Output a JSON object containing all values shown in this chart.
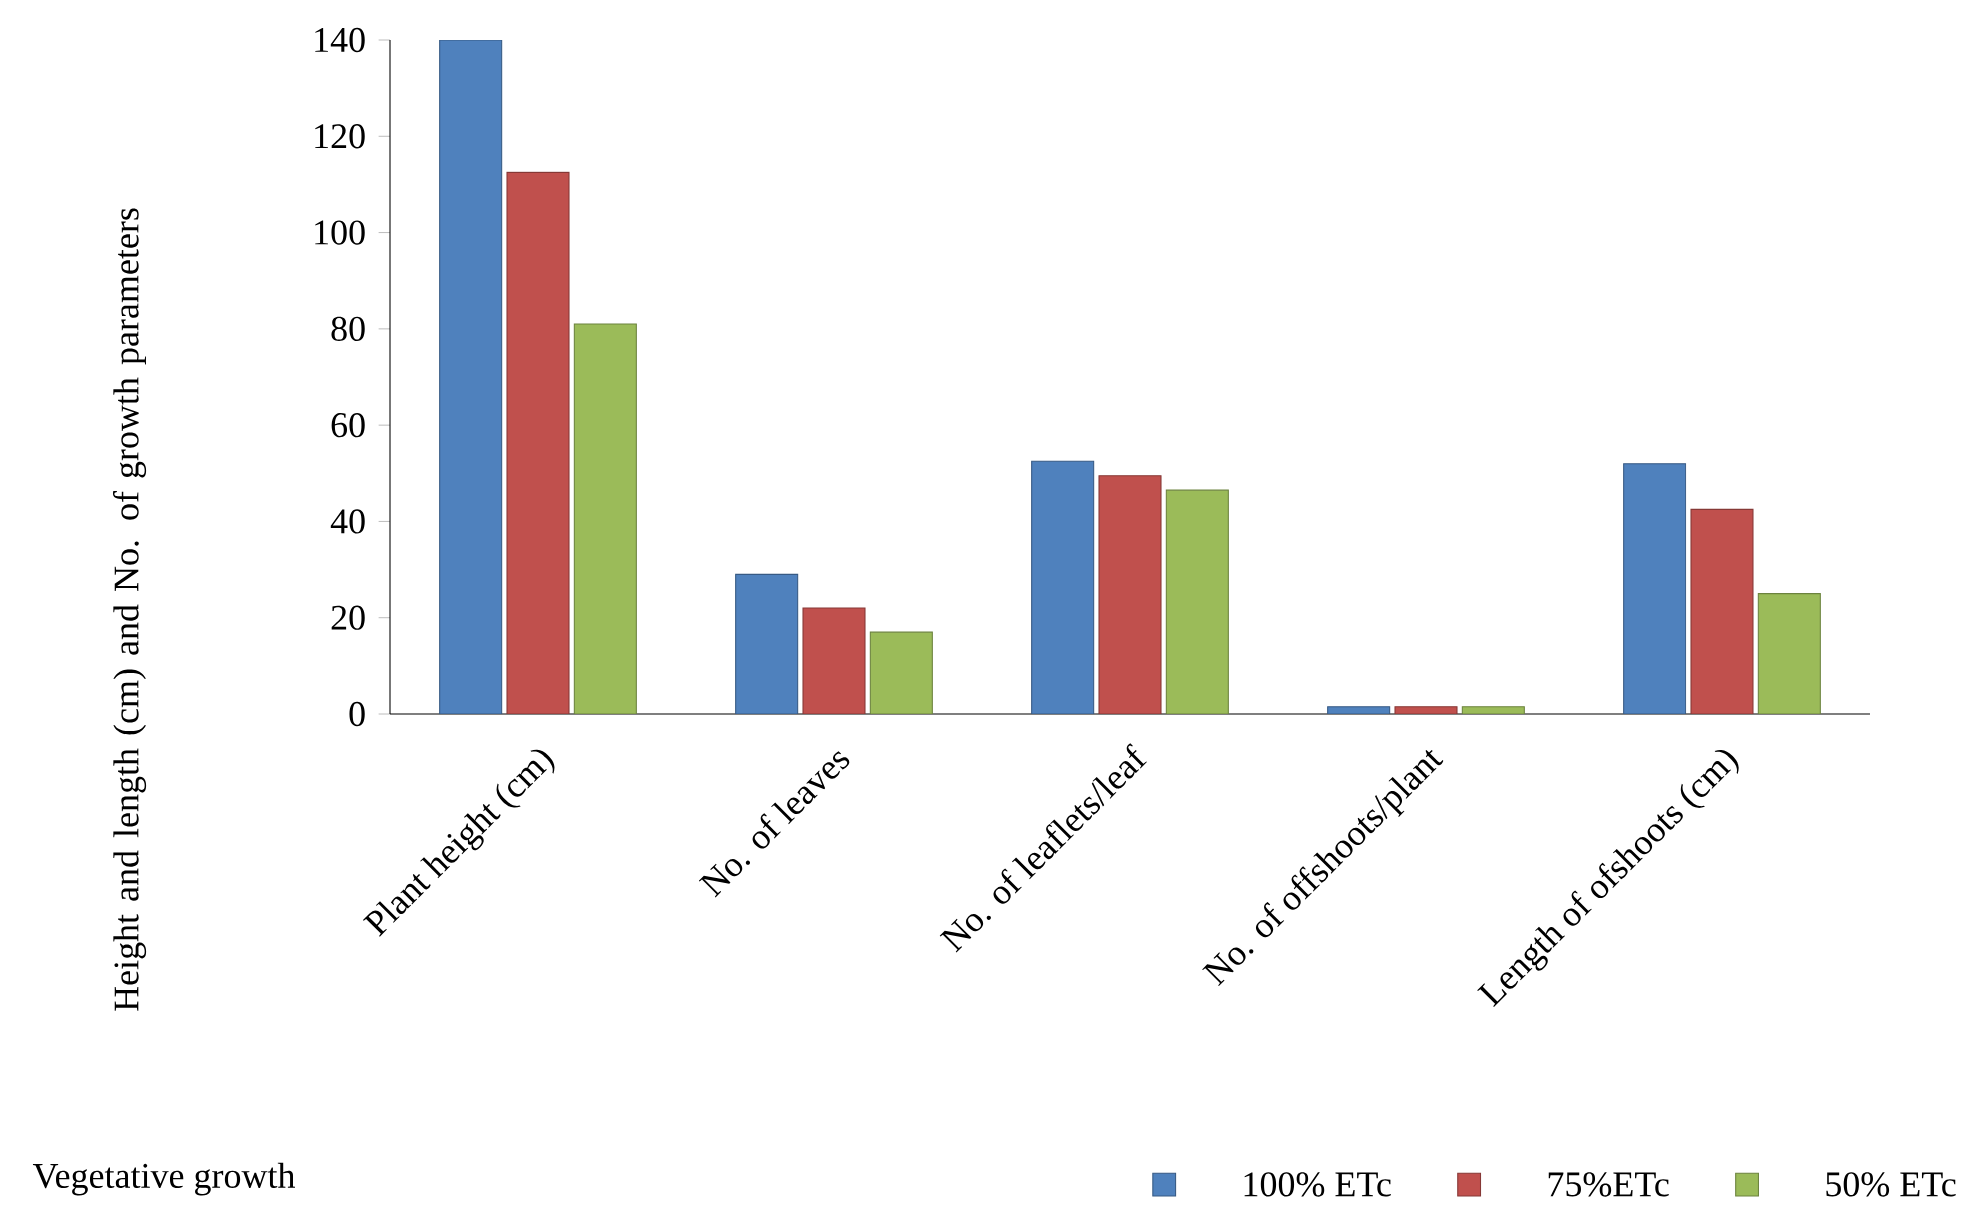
{
  "chart_data": {
    "type": "bar",
    "xlabel": "Vegetative growth",
    "ylabel": "Height and length (cm) and No. of growth parameters",
    "categories": [
      "Plant height (cm)",
      "No. of leaves",
      "No. of leaflets/leaf",
      "No. of offshoots/plant",
      "Length of ofshoots (cm)"
    ],
    "series": [
      {
        "name": "100% ETc",
        "color": "#4f81bd",
        "values": [
          140,
          29,
          52.5,
          1.5,
          52
        ]
      },
      {
        "name": "75%ETc",
        "color": "#c0504d",
        "values": [
          112.5,
          22,
          49.5,
          1.5,
          42.5
        ]
      },
      {
        "name": "50% ETc",
        "color": "#9bbb59",
        "values": [
          81,
          17,
          46.5,
          1.5,
          25
        ]
      }
    ],
    "ylim": [
      0,
      140
    ],
    "yticks": [
      0,
      20,
      40,
      60,
      80,
      100,
      120,
      140
    ],
    "legend": "bottom right"
  }
}
